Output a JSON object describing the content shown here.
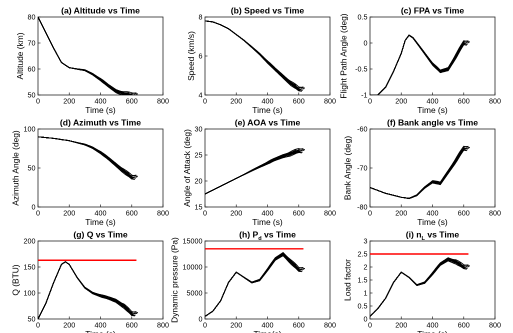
{
  "chart_data": [
    {
      "type": "line",
      "title": "(a) Altitude vs Time",
      "xlabel": "Time (s)",
      "ylabel": "Altitude (km)",
      "xlim": [
        0,
        800
      ],
      "ylim": [
        50,
        80
      ],
      "xticks": [
        "0",
        "200",
        "400",
        "600",
        "800"
      ],
      "yticks": [
        "50",
        "60",
        "70",
        "80"
      ],
      "grid": false,
      "series_base": {
        "x": [
          0,
          50,
          100,
          150,
          200,
          250,
          300,
          350,
          400,
          450,
          500,
          550,
          600
        ],
        "y": [
          80,
          74,
          68,
          62.5,
          60.5,
          60,
          59.5,
          58,
          56,
          53.5,
          51.5,
          50.5,
          50
        ]
      },
      "trajectory_count": 12,
      "end_times": [
        600,
        612,
        620,
        628,
        636,
        596,
        606,
        616,
        624,
        632,
        586,
        640
      ]
    },
    {
      "type": "line",
      "title": "(b) Speed vs Time",
      "xlabel": "Time (s)",
      "ylabel": "Speed (km/s)",
      "xlim": [
        0,
        800
      ],
      "ylim": [
        4,
        8
      ],
      "xticks": [
        "0",
        "200",
        "400",
        "600",
        "800"
      ],
      "yticks": [
        "4",
        "6",
        "8"
      ],
      "grid": false,
      "series_base": {
        "x": [
          0,
          50,
          100,
          150,
          200,
          250,
          300,
          350,
          400,
          450,
          500,
          550,
          600
        ],
        "y": [
          7.8,
          7.75,
          7.6,
          7.4,
          7.1,
          6.8,
          6.45,
          6.1,
          5.7,
          5.3,
          4.95,
          4.6,
          4.3
        ]
      },
      "trajectory_count": 12,
      "end_times": [
        600,
        612,
        620,
        628,
        636,
        596,
        606,
        616,
        624,
        632,
        586,
        640
      ]
    },
    {
      "type": "line",
      "title": "(c) FPA vs Time",
      "xlabel": "Time (s)",
      "ylabel": "Flight Path Angle (deg)",
      "xlim": [
        0,
        800
      ],
      "ylim": [
        -1,
        0.5
      ],
      "xticks": [
        "0",
        "200",
        "400",
        "600",
        "800"
      ],
      "yticks": [
        "-1",
        "-0.5",
        "0",
        "0.5"
      ],
      "grid": false,
      "series_base": {
        "x": [
          0,
          50,
          100,
          150,
          200,
          225,
          250,
          275,
          300,
          350,
          400,
          450,
          500,
          550,
          600
        ],
        "y": [
          -1,
          -1,
          -0.85,
          -0.55,
          -0.2,
          0.05,
          0.15,
          0.1,
          0,
          -0.2,
          -0.4,
          -0.55,
          -0.5,
          -0.25,
          0
        ]
      },
      "trajectory_count": 12,
      "end_times": [
        600,
        612,
        620,
        628,
        636,
        596,
        606,
        616,
        624,
        632,
        586,
        640
      ]
    },
    {
      "type": "line",
      "title": "(d) Azimuth vs Time",
      "xlabel": "Time (s)",
      "ylabel": "Azimuth Angle (deg)",
      "xlim": [
        0,
        800
      ],
      "ylim": [
        0,
        100
      ],
      "xticks": [
        "0",
        "200",
        "400",
        "600",
        "800"
      ],
      "yticks": [
        "0",
        "50",
        "100"
      ],
      "grid": false,
      "series_base": {
        "x": [
          0,
          100,
          200,
          300,
          350,
          400,
          450,
          500,
          550,
          600
        ],
        "y": [
          90,
          88,
          85,
          80,
          76,
          70,
          62,
          54,
          46,
          38
        ]
      },
      "trajectory_count": 12,
      "end_times": [
        600,
        612,
        620,
        628,
        636,
        596,
        606,
        616,
        624,
        632,
        586,
        640
      ]
    },
    {
      "type": "line",
      "title": "(e) AOA vs Time",
      "xlabel": "Time (s)",
      "ylabel": "Angle of Attack (deg)",
      "xlim": [
        0,
        800
      ],
      "ylim": [
        15,
        30
      ],
      "xticks": [
        "0",
        "200",
        "400",
        "600",
        "800"
      ],
      "yticks": [
        "15",
        "20",
        "25",
        "30"
      ],
      "grid": false,
      "series_base": {
        "x": [
          0,
          100,
          200,
          300,
          400,
          500,
          600
        ],
        "y": [
          17.5,
          19,
          20.5,
          22,
          23.5,
          24.8,
          25.8
        ]
      },
      "trajectory_count": 12,
      "end_times": [
        600,
        612,
        620,
        628,
        636,
        596,
        606,
        616,
        624,
        632,
        586,
        640
      ]
    },
    {
      "type": "line",
      "title": "(f) Bank angle vs Time",
      "xlabel": "Time (s)",
      "ylabel": "Bank Angle (deg)",
      "xlim": [
        0,
        800
      ],
      "ylim": [
        -80,
        -60
      ],
      "xticks": [
        "0",
        "200",
        "400",
        "600",
        "800"
      ],
      "yticks": [
        "-80",
        "-70",
        "-60"
      ],
      "grid": false,
      "series_base": {
        "x": [
          0,
          100,
          200,
          250,
          300,
          350,
          400,
          450,
          500,
          550,
          600
        ],
        "y": [
          -75,
          -76.5,
          -77.5,
          -77.8,
          -77,
          -75,
          -73.5,
          -74,
          -71,
          -68,
          -65
        ]
      },
      "trajectory_count": 12,
      "end_times": [
        600,
        612,
        620,
        628,
        636,
        596,
        606,
        616,
        624,
        632,
        586,
        640
      ]
    },
    {
      "type": "line",
      "title": "(g) Q vs Time",
      "xlabel": "Time (s)",
      "ylabel": "Q (BTU)",
      "xlim": [
        0,
        800
      ],
      "ylim": [
        50,
        200
      ],
      "xticks": [
        "0",
        "200",
        "400",
        "600",
        "800"
      ],
      "yticks": [
        "50",
        "100",
        "150",
        "200"
      ],
      "grid": false,
      "limit_line": {
        "y": 163,
        "x": [
          0,
          630
        ],
        "color": "#ff0000"
      },
      "series_base": {
        "x": [
          0,
          50,
          100,
          150,
          175,
          200,
          250,
          300,
          350,
          400,
          450,
          500,
          550,
          600
        ],
        "y": [
          50,
          80,
          120,
          155,
          160,
          155,
          130,
          110,
          100,
          95,
          90,
          85,
          75,
          60
        ]
      },
      "trajectory_count": 12,
      "end_times": [
        600,
        612,
        620,
        628,
        636,
        596,
        606,
        616,
        624,
        632,
        586,
        640
      ]
    },
    {
      "type": "line",
      "title_main": "(h) P",
      "title_sub": "d",
      "title_tail": " vs Time",
      "xlabel": "Time(s)",
      "ylabel": "Dynamic pressure (Pa)",
      "xlim": [
        0,
        800
      ],
      "ylim": [
        0,
        15000
      ],
      "xticks": [
        "0",
        "200",
        "400",
        "600",
        "800"
      ],
      "yticks": [
        "0",
        "5000",
        "10000",
        "15000"
      ],
      "grid": false,
      "limit_line": {
        "y": 13500,
        "x": [
          0,
          630
        ],
        "color": "#ff0000"
      },
      "series_base": {
        "x": [
          0,
          50,
          100,
          150,
          200,
          250,
          300,
          350,
          400,
          450,
          500,
          550,
          600
        ],
        "y": [
          500,
          1500,
          3500,
          7000,
          9000,
          8000,
          7000,
          7500,
          9500,
          11500,
          12500,
          11000,
          9500
        ]
      },
      "trajectory_count": 12,
      "end_times": [
        600,
        612,
        620,
        628,
        636,
        596,
        606,
        616,
        624,
        632,
        586,
        640
      ]
    },
    {
      "type": "line",
      "title_main": "(i) n",
      "title_sub": "L",
      "title_tail": " vs Time",
      "xlabel": "Time (s)",
      "ylabel": "Load factor",
      "xlim": [
        0,
        800
      ],
      "ylim": [
        0,
        3
      ],
      "xticks": [
        "0",
        "200",
        "400",
        "600",
        "800"
      ],
      "yticks": [
        "0",
        "0.5",
        "1",
        "1.5",
        "2",
        "2.5",
        "3"
      ],
      "grid": false,
      "limit_line": {
        "y": 2.5,
        "x": [
          0,
          630
        ],
        "color": "#ff0000"
      },
      "series_base": {
        "x": [
          0,
          50,
          100,
          150,
          200,
          250,
          300,
          350,
          400,
          450,
          500,
          550,
          600
        ],
        "y": [
          0.1,
          0.4,
          0.8,
          1.4,
          1.8,
          1.6,
          1.3,
          1.4,
          1.75,
          2.1,
          2.3,
          2.2,
          2.0
        ]
      },
      "trajectory_count": 12,
      "end_times": [
        600,
        612,
        620,
        628,
        636,
        596,
        606,
        616,
        624,
        632,
        586,
        640
      ]
    }
  ]
}
